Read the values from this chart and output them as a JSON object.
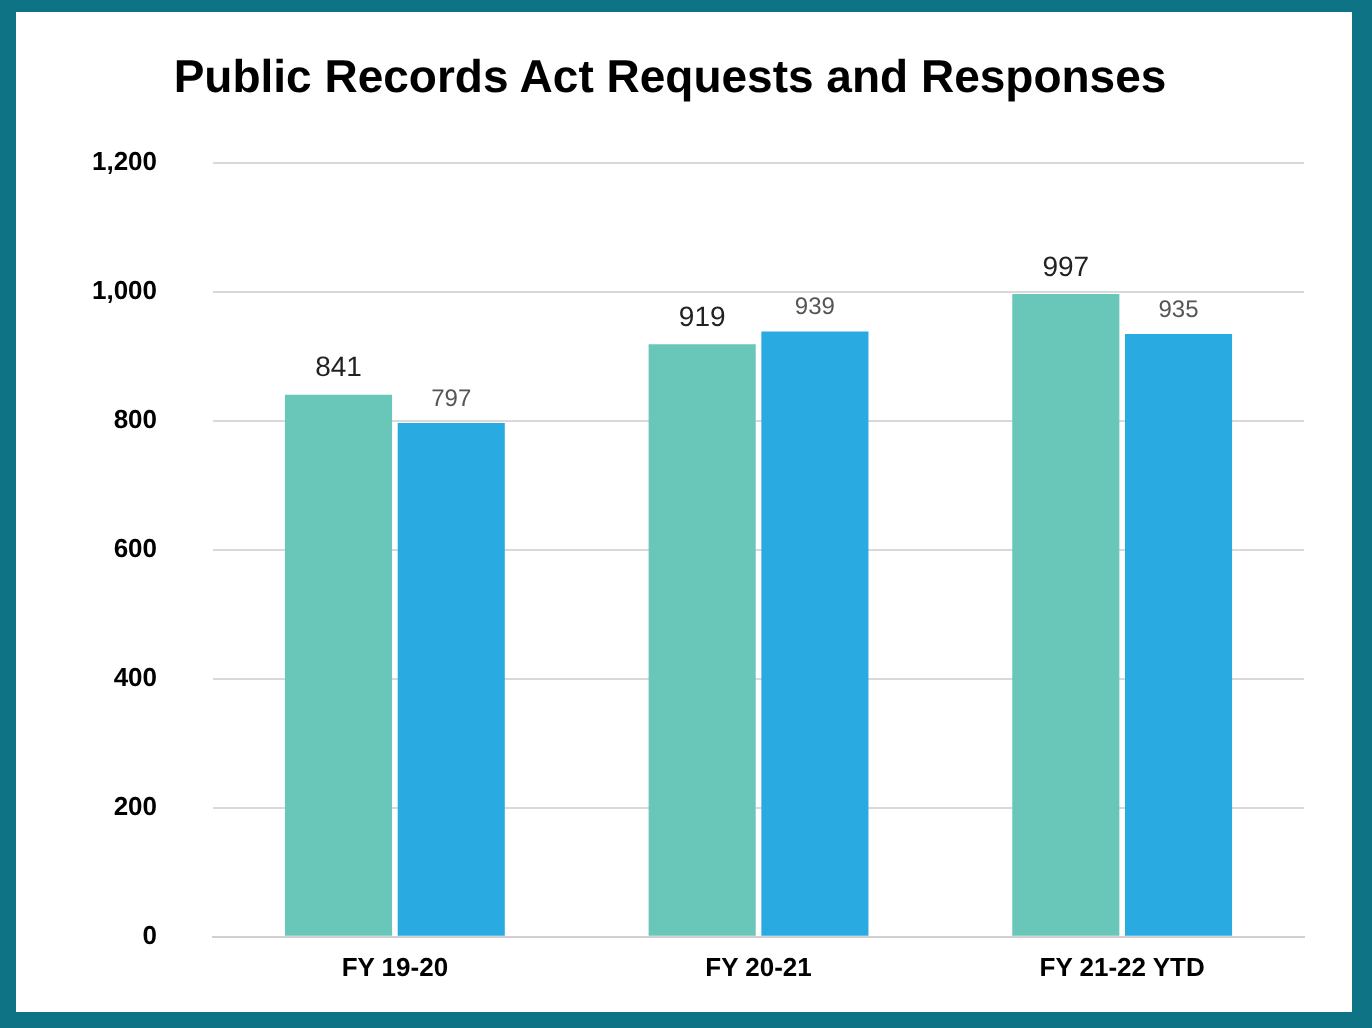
{
  "chart_data": {
    "type": "bar",
    "title": "Public Records Act Requests and Responses",
    "categories": [
      "FY 19-20",
      "FY 20-21",
      "FY 21-22 YTD"
    ],
    "series": [
      {
        "color": "#68c7b8",
        "values": [
          841,
          919,
          997
        ]
      },
      {
        "color": "#29abe2",
        "values": [
          797,
          939,
          935
        ]
      }
    ],
    "ylim": [
      0,
      1200
    ],
    "yticks": [
      {
        "value": 0,
        "label": "0"
      },
      {
        "value": 200,
        "label": "200"
      },
      {
        "value": 400,
        "label": "400"
      },
      {
        "value": 600,
        "label": "600"
      },
      {
        "value": 800,
        "label": "800"
      },
      {
        "value": 1000,
        "label": "1,000"
      },
      {
        "value": 1200,
        "label": "1,200"
      }
    ],
    "grid": "y",
    "legend": false,
    "data_labels": true
  }
}
